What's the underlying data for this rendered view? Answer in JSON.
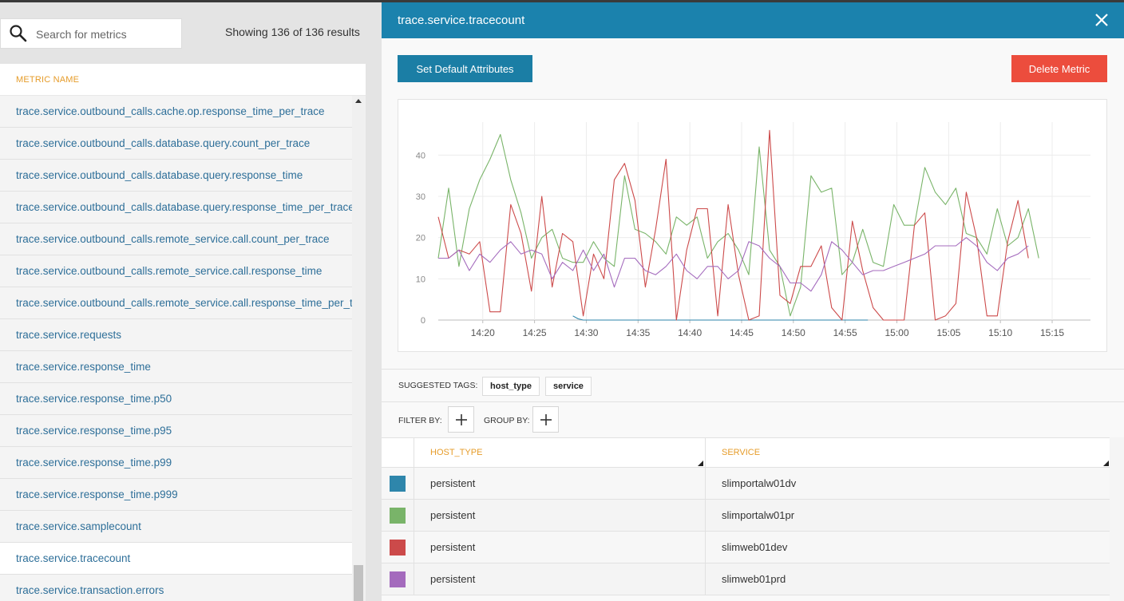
{
  "search": {
    "placeholder": "Search for metrics",
    "icon": "search-icon"
  },
  "results_text": "Showing 136 of 136 results",
  "list": {
    "header": "METRIC NAME",
    "items": [
      "trace.service.outbound_calls.cache.op.response_time_per_trace",
      "trace.service.outbound_calls.database.query.count_per_trace",
      "trace.service.outbound_calls.database.query.response_time",
      "trace.service.outbound_calls.database.query.response_time_per_trace",
      "trace.service.outbound_calls.remote_service.call.count_per_trace",
      "trace.service.outbound_calls.remote_service.call.response_time",
      "trace.service.outbound_calls.remote_service.call.response_time_per_trace",
      "trace.service.requests",
      "trace.service.response_time",
      "trace.service.response_time.p50",
      "trace.service.response_time.p95",
      "trace.service.response_time.p99",
      "trace.service.response_time.p999",
      "trace.service.samplecount",
      "trace.service.tracecount",
      "trace.service.transaction.errors"
    ],
    "selected_index": 14
  },
  "detail": {
    "title": "trace.service.tracecount",
    "close_icon": "close-icon",
    "set_default_label": "Set Default Attributes",
    "delete_label": "Delete Metric",
    "suggested_label": "SUGGESTED TAGS:",
    "tags": [
      "host_type",
      "service"
    ],
    "filter_label": "FILTER BY:",
    "group_label": "GROUP BY:",
    "table": {
      "columns": [
        "HOST_TYPE",
        "SERVICE"
      ],
      "rows": [
        {
          "color": "#2e86ab",
          "host_type": "persistent",
          "service": "slimportalw01dv"
        },
        {
          "color": "#79b469",
          "host_type": "persistent",
          "service": "slimportalw01pr"
        },
        {
          "color": "#cc4a4a",
          "host_type": "persistent",
          "service": "slimweb01dev"
        },
        {
          "color": "#a46bbd",
          "host_type": "persistent",
          "service": "slimweb01prd"
        }
      ]
    }
  },
  "chart_data": {
    "type": "line",
    "x_ticks": [
      "14:20",
      "14:25",
      "14:30",
      "14:35",
      "14:40",
      "14:45",
      "14:50",
      "14:55",
      "15:00",
      "15:05",
      "15:10",
      "15:15"
    ],
    "y_ticks": [
      0,
      10,
      20,
      30,
      40
    ],
    "ylim": [
      0,
      48
    ],
    "xlim_minutes": [
      0,
      63
    ],
    "grid": true,
    "series": [
      {
        "name": "slimportalw01dv",
        "color": "#2e86ab",
        "points": [
          [
            13,
            1
          ],
          [
            13.5,
            0.3
          ],
          [
            14,
            0
          ],
          [
            18,
            0
          ],
          [
            22,
            0
          ],
          [
            26,
            0
          ],
          [
            30,
            0
          ],
          [
            34,
            0
          ],
          [
            38,
            0
          ],
          [
            41.5,
            0
          ]
        ]
      },
      {
        "name": "slimportalw01pr",
        "color": "#79b469",
        "points": [
          [
            0,
            15
          ],
          [
            1,
            32
          ],
          [
            2,
            13
          ],
          [
            3,
            27
          ],
          [
            4,
            34
          ],
          [
            5,
            39
          ],
          [
            6,
            45
          ],
          [
            7,
            34
          ],
          [
            8,
            26
          ],
          [
            9,
            15
          ],
          [
            10,
            20
          ],
          [
            11,
            22
          ],
          [
            12,
            15
          ],
          [
            13,
            14
          ],
          [
            14,
            14
          ],
          [
            15,
            19
          ],
          [
            16,
            15
          ],
          [
            17,
            13
          ],
          [
            18,
            35
          ],
          [
            19,
            22
          ],
          [
            20,
            21
          ],
          [
            21,
            19
          ],
          [
            22,
            16
          ],
          [
            23,
            25
          ],
          [
            24,
            23
          ],
          [
            25,
            25
          ],
          [
            26,
            15
          ],
          [
            27,
            19
          ],
          [
            28,
            21
          ],
          [
            29,
            17
          ],
          [
            30,
            11
          ],
          [
            31,
            42
          ],
          [
            32,
            17
          ],
          [
            33,
            13
          ],
          [
            34,
            1
          ],
          [
            35,
            8
          ],
          [
            36,
            35
          ],
          [
            37,
            31
          ],
          [
            38,
            32
          ],
          [
            39,
            11
          ],
          [
            40,
            14
          ],
          [
            41,
            22
          ],
          [
            42,
            14
          ],
          [
            43,
            13
          ],
          [
            44,
            28
          ],
          [
            45,
            23
          ],
          [
            46,
            23
          ],
          [
            47,
            37
          ],
          [
            48,
            31
          ],
          [
            49,
            28
          ],
          [
            50,
            32
          ],
          [
            51,
            21
          ],
          [
            52,
            20
          ],
          [
            53,
            16
          ],
          [
            54,
            27
          ],
          [
            55,
            18
          ],
          [
            56,
            20
          ],
          [
            57,
            27
          ],
          [
            58,
            15
          ]
        ]
      },
      {
        "name": "slimweb01dev",
        "color": "#cc4a4a",
        "points": [
          [
            0,
            25
          ],
          [
            1,
            15
          ],
          [
            2,
            17
          ],
          [
            3,
            16
          ],
          [
            4,
            19
          ],
          [
            5,
            2
          ],
          [
            6,
            2
          ],
          [
            7,
            28
          ],
          [
            8,
            21
          ],
          [
            9,
            7
          ],
          [
            10,
            30
          ],
          [
            11,
            8
          ],
          [
            12,
            21
          ],
          [
            13,
            19
          ],
          [
            14,
            1
          ],
          [
            15,
            16
          ],
          [
            16,
            10
          ],
          [
            17,
            34
          ],
          [
            18,
            38
          ],
          [
            19,
            29
          ],
          [
            20,
            8
          ],
          [
            21,
            22
          ],
          [
            22,
            39
          ],
          [
            23,
            0
          ],
          [
            24,
            17
          ],
          [
            25,
            27
          ],
          [
            26,
            27
          ],
          [
            27,
            1
          ],
          [
            28,
            28
          ],
          [
            29,
            11
          ],
          [
            30,
            0
          ],
          [
            31,
            1
          ],
          [
            32,
            46
          ],
          [
            33,
            6
          ],
          [
            34,
            4
          ],
          [
            35,
            13
          ],
          [
            36,
            13
          ],
          [
            37,
            18
          ],
          [
            38,
            3
          ],
          [
            39,
            0
          ],
          [
            40,
            24
          ],
          [
            41,
            12
          ],
          [
            42,
            3
          ],
          [
            43,
            0
          ],
          [
            44,
            0
          ],
          [
            45,
            0
          ],
          [
            46,
            23
          ],
          [
            47,
            26
          ],
          [
            48,
            0
          ],
          [
            49,
            1
          ],
          [
            50,
            4
          ],
          [
            51,
            31
          ],
          [
            52,
            20
          ],
          [
            53,
            1
          ],
          [
            54,
            1
          ],
          [
            55,
            19
          ],
          [
            56,
            29
          ],
          [
            57,
            15
          ]
        ]
      },
      {
        "name": "slimweb01prd",
        "color": "#a46bbd",
        "points": [
          [
            0,
            15
          ],
          [
            1,
            15
          ],
          [
            2,
            17
          ],
          [
            3,
            12
          ],
          [
            4,
            16
          ],
          [
            5,
            14
          ],
          [
            6,
            17
          ],
          [
            7,
            19
          ],
          [
            8,
            16
          ],
          [
            9,
            17
          ],
          [
            10,
            16
          ],
          [
            11,
            10
          ],
          [
            12,
            14
          ],
          [
            13,
            12
          ],
          [
            14,
            17
          ],
          [
            15,
            12
          ],
          [
            16,
            16
          ],
          [
            17,
            8
          ],
          [
            18,
            15
          ],
          [
            19,
            15
          ],
          [
            20,
            12
          ],
          [
            21,
            11
          ],
          [
            22,
            13
          ],
          [
            23,
            16
          ],
          [
            24,
            12
          ],
          [
            25,
            10
          ],
          [
            26,
            13
          ],
          [
            27,
            13
          ],
          [
            28,
            10
          ],
          [
            29,
            12
          ],
          [
            30,
            19
          ],
          [
            31,
            18
          ],
          [
            32,
            15
          ],
          [
            33,
            13
          ],
          [
            34,
            9
          ],
          [
            35,
            9
          ],
          [
            36,
            7
          ],
          [
            37,
            11
          ],
          [
            38,
            19
          ],
          [
            39,
            17
          ],
          [
            40,
            14
          ],
          [
            41,
            11
          ],
          [
            42,
            12
          ],
          [
            43,
            12
          ],
          [
            44,
            13
          ],
          [
            45,
            14
          ],
          [
            46,
            15
          ],
          [
            47,
            16
          ],
          [
            48,
            18
          ],
          [
            49,
            18
          ],
          [
            50,
            18
          ],
          [
            51,
            20
          ],
          [
            52,
            18
          ],
          [
            53,
            14
          ],
          [
            54,
            12
          ],
          [
            55,
            15
          ],
          [
            56,
            16
          ],
          [
            57,
            18
          ]
        ]
      }
    ]
  }
}
